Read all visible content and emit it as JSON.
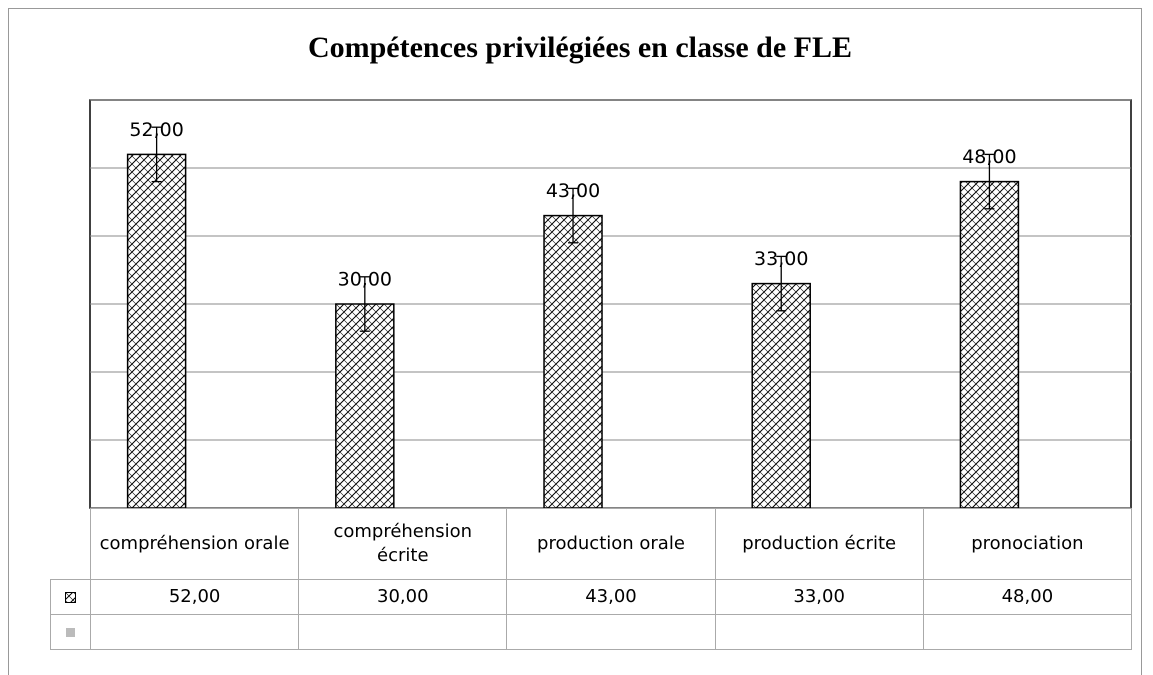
{
  "chart_data": {
    "type": "bar",
    "title": "Compétences privilégiées en classe de FLE",
    "categories": [
      "compréhension orale",
      "compréhension écrite",
      "production orale",
      "production écrite",
      "pronociation"
    ],
    "values": [
      52,
      30,
      43,
      33,
      48
    ],
    "value_labels": [
      "52,00",
      "30,00",
      "43,00",
      "33,00",
      "48,00"
    ],
    "errors": [
      4,
      4,
      4,
      4,
      4
    ],
    "ylim": [
      0,
      60
    ],
    "yticks": [
      0,
      10,
      20,
      30,
      40,
      50,
      60
    ],
    "grid": true,
    "color": "#000000"
  }
}
